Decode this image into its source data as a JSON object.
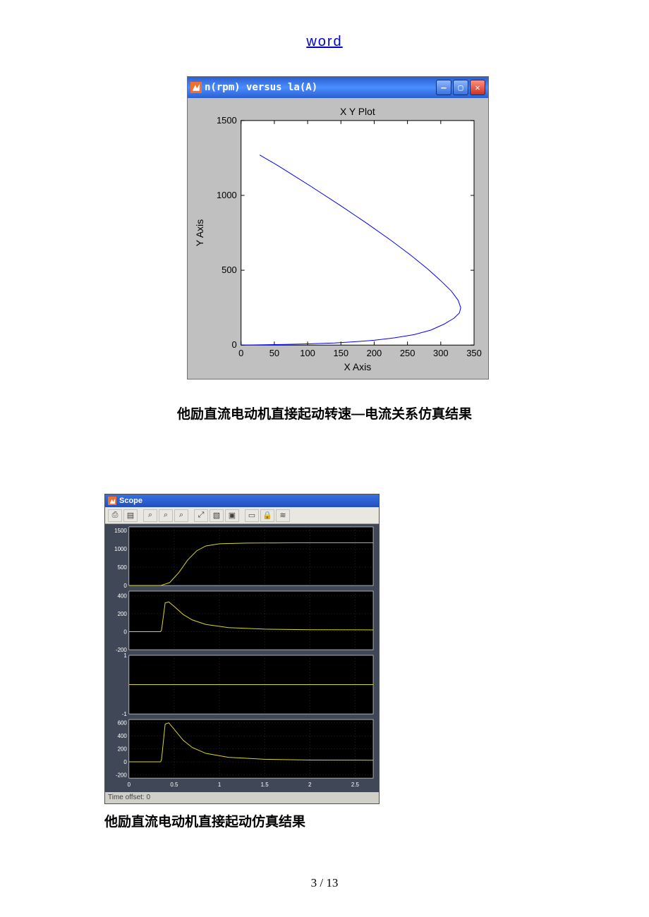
{
  "header": {
    "link": "word"
  },
  "fig1": {
    "window_title": "n(rpm) versus la(A)",
    "plot_title": "X Y Plot",
    "xlabel": "X Axis",
    "ylabel": "Y Axis",
    "xlim": [
      0,
      350
    ],
    "ylim": [
      0,
      1500
    ],
    "xticks": [
      0,
      50,
      100,
      150,
      200,
      250,
      300,
      350
    ],
    "yticks": [
      0,
      500,
      1000,
      1500
    ],
    "background_color": "#c0c0c0",
    "plot_bg_color": "#ffffff",
    "axis_color": "#000000",
    "line_color": "#0000ff",
    "line_width": 1,
    "tick_fontsize": 13,
    "title_fontsize": 14,
    "label_fontsize": 14,
    "curve": [
      [
        0,
        0
      ],
      [
        60,
        4
      ],
      [
        100,
        8
      ],
      [
        140,
        14
      ],
      [
        170,
        22
      ],
      [
        200,
        32
      ],
      [
        230,
        48
      ],
      [
        260,
        70
      ],
      [
        285,
        100
      ],
      [
        305,
        140
      ],
      [
        320,
        180
      ],
      [
        328,
        215
      ],
      [
        330,
        250
      ],
      [
        326,
        300
      ],
      [
        316,
        360
      ],
      [
        300,
        430
      ],
      [
        280,
        510
      ],
      [
        255,
        600
      ],
      [
        225,
        700
      ],
      [
        190,
        810
      ],
      [
        150,
        930
      ],
      [
        105,
        1060
      ],
      [
        55,
        1200
      ],
      [
        28,
        1270
      ]
    ]
  },
  "caption1": "他励直流电动机直接起动转速—电流关系仿真结果",
  "fig2": {
    "window_title": "Scope",
    "toolbar_icons": [
      "print-icon",
      "params-icon",
      "zoom-in-icon",
      "zoom-x-icon",
      "zoom-y-icon",
      "autoscale-icon",
      "save-icon",
      "restore-icon",
      "float-icon",
      "lock-icon",
      "signal-icon"
    ],
    "footer": "Time offset: 0",
    "panel_bg": "#000000",
    "outer_bg": "#404858",
    "grid_color": "#505050",
    "trace_color": "#d8d820",
    "axis_color": "#ffffff",
    "tick_fontsize": 8,
    "x": {
      "lim": [
        0,
        2.7
      ],
      "ticks": [
        0,
        0.5,
        1,
        1.5,
        2,
        2.5
      ]
    },
    "panels": [
      {
        "ylim": [
          0,
          1600
        ],
        "yticks": [
          0,
          500,
          1000,
          1500
        ],
        "data": [
          [
            0,
            0
          ],
          [
            0.35,
            0
          ],
          [
            0.45,
            80
          ],
          [
            0.55,
            350
          ],
          [
            0.65,
            700
          ],
          [
            0.75,
            950
          ],
          [
            0.85,
            1080
          ],
          [
            1.0,
            1140
          ],
          [
            1.3,
            1160
          ],
          [
            1.8,
            1165
          ],
          [
            2.7,
            1165
          ]
        ]
      },
      {
        "ylim": [
          -200,
          450
        ],
        "yticks": [
          -200,
          0,
          200,
          400
        ],
        "data": [
          [
            0,
            0
          ],
          [
            0.35,
            0
          ],
          [
            0.36,
            20
          ],
          [
            0.4,
            320
          ],
          [
            0.44,
            330
          ],
          [
            0.5,
            280
          ],
          [
            0.6,
            190
          ],
          [
            0.7,
            130
          ],
          [
            0.85,
            80
          ],
          [
            1.1,
            45
          ],
          [
            1.5,
            28
          ],
          [
            2.0,
            22
          ],
          [
            2.7,
            20
          ]
        ]
      },
      {
        "ylim": [
          -1,
          1
        ],
        "yticks": [
          -1,
          1
        ],
        "data": [
          [
            0,
            0
          ],
          [
            2.7,
            0
          ]
        ]
      },
      {
        "ylim": [
          -250,
          650
        ],
        "yticks": [
          -200,
          0,
          200,
          400,
          600
        ],
        "data": [
          [
            0,
            0
          ],
          [
            0.35,
            0
          ],
          [
            0.36,
            40
          ],
          [
            0.4,
            580
          ],
          [
            0.44,
            600
          ],
          [
            0.5,
            500
          ],
          [
            0.6,
            330
          ],
          [
            0.7,
            220
          ],
          [
            0.85,
            130
          ],
          [
            1.1,
            70
          ],
          [
            1.5,
            40
          ],
          [
            2.0,
            28
          ],
          [
            2.7,
            25
          ]
        ]
      }
    ]
  },
  "caption2": "他励直流电动机直接起动仿真结果",
  "page": {
    "num": "3 / 13"
  }
}
